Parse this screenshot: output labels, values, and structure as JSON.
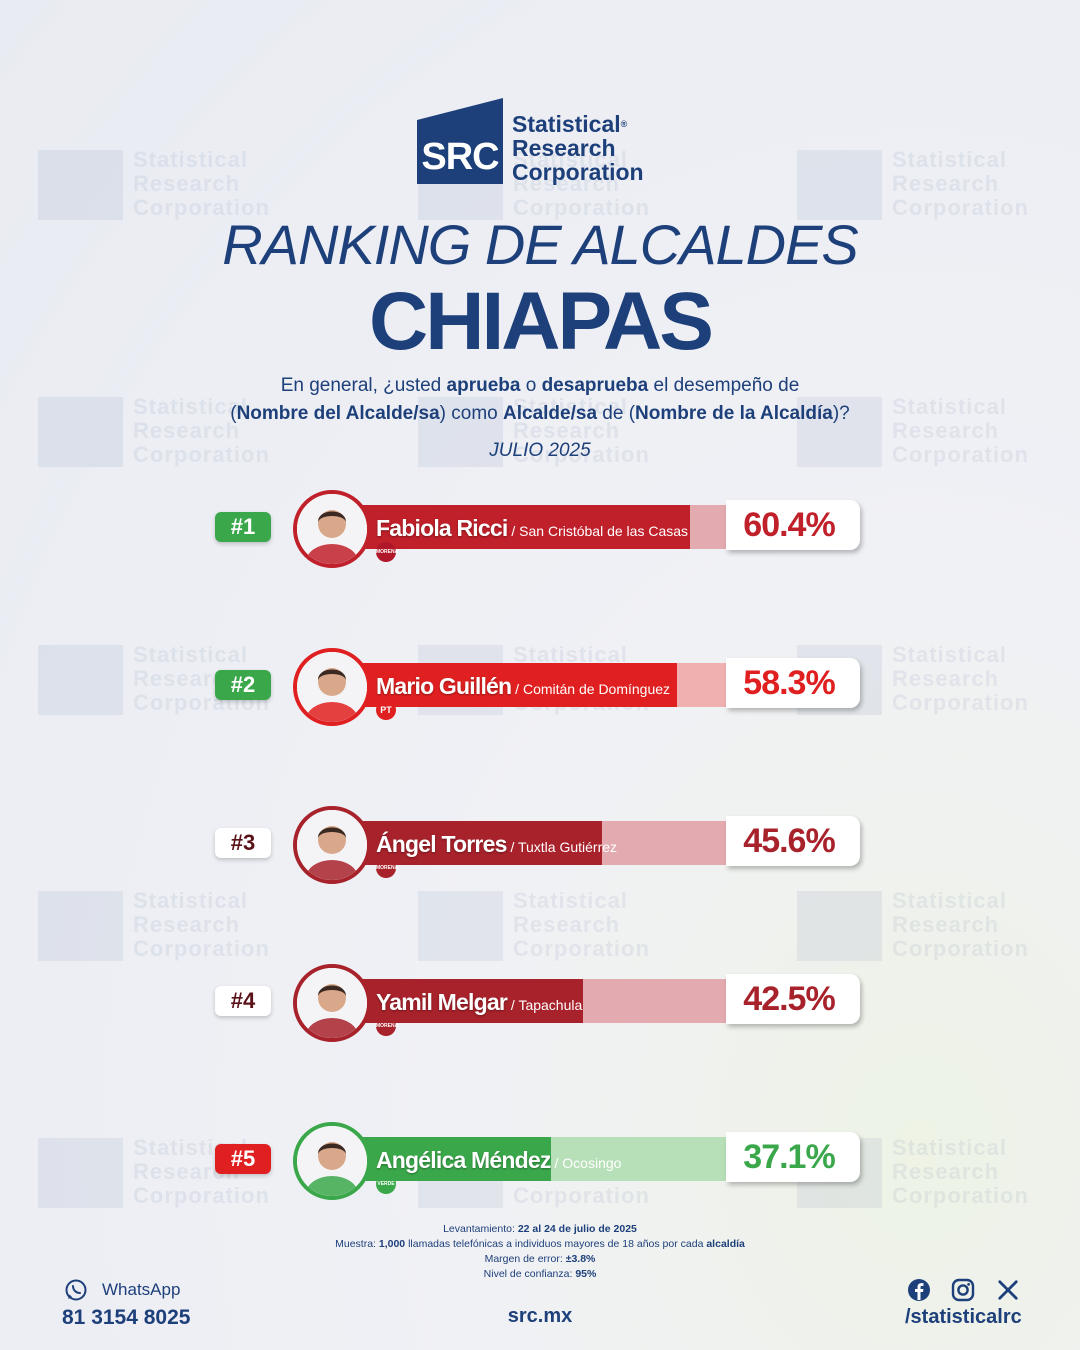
{
  "logo": {
    "abbr": "SRC",
    "line1": "Statistical",
    "line2": "Research",
    "line3": "Corporation",
    "reg": "®"
  },
  "title": "RANKING DE ALCALDES",
  "state": "CHIAPAS",
  "question": {
    "p1": "En general, ¿usted ",
    "b1": "aprueba",
    "p2": " o ",
    "b2": "desaprueba",
    "p3": " el desempeño de",
    "p4": "(",
    "b3": "Nombre del Alcalde/sa",
    "p5": ") como ",
    "b4": "Alcalde/sa",
    "p6": " de (",
    "b5": "Nombre de la Alcaldía",
    "p7": ")?"
  },
  "period": "JULIO 2025",
  "chart_data": {
    "type": "bar",
    "categories": [
      "Fabiola Ricci",
      "Mario Guillén",
      "Ángel Torres",
      "Yamil Melgar",
      "Angélica Méndez"
    ],
    "values": [
      60.4,
      58.3,
      45.6,
      42.5,
      37.1
    ],
    "ylim": [
      0,
      100
    ],
    "rows": [
      {
        "rank": "#1",
        "name": "Fabiola Ricci",
        "city": " / San Cristóbal de las Casas",
        "value": 60.4,
        "pct_label": "60.4%",
        "party": "MORENA",
        "rank_bg": "#3aa84a",
        "rank_fg": "#ffffff",
        "bar": "#c0202a",
        "track": "#e3aab0",
        "border": "#c0202a",
        "party_bg": "#b0182a",
        "pct_color": "#c0202a"
      },
      {
        "rank": "#2",
        "name": "Mario Guillén",
        "city": " / Comitán de Domínguez",
        "value": 58.3,
        "pct_label": "58.3%",
        "party": "PT",
        "rank_bg": "#3aa84a",
        "rank_fg": "#ffffff",
        "bar": "#e02020",
        "track": "#f0b0b0",
        "border": "#e02020",
        "party_bg": "#e02020",
        "pct_color": "#e02020"
      },
      {
        "rank": "#3",
        "name": "Ángel Torres",
        "city": " / Tuxtla Gutiérrez",
        "value": 45.6,
        "pct_label": "45.6%",
        "party": "MORENA",
        "rank_bg": "#ffffff",
        "rank_fg": "#5a1218",
        "bar": "#a8222b",
        "track": "#e3aab0",
        "border": "#a8222b",
        "party_bg": "#a8222b",
        "pct_color": "#a8222b"
      },
      {
        "rank": "#4",
        "name": "Yamil Melgar",
        "city": " / Tapachula",
        "value": 42.5,
        "pct_label": "42.5%",
        "party": "MORENA",
        "rank_bg": "#ffffff",
        "rank_fg": "#5a1218",
        "bar": "#a8222b",
        "track": "#e3aab0",
        "border": "#a8222b",
        "party_bg": "#a8222b",
        "pct_color": "#a8222b"
      },
      {
        "rank": "#5",
        "name": "Angélica Méndez",
        "city": " / Ocosingo",
        "value": 37.1,
        "pct_label": "37.1%",
        "party": "VERDE",
        "rank_bg": "#e02020",
        "rank_fg": "#ffffff",
        "bar": "#3aa84a",
        "track": "#b8e0b8",
        "border": "#3aa84a",
        "party_bg": "#3aa84a",
        "pct_color": "#3aa84a"
      }
    ]
  },
  "notes": {
    "l1_a": "Levantamiento: ",
    "l1_b": "22 al 24 de julio de 2025",
    "l2_a": "Muestra: ",
    "l2_b": "1,000",
    "l2_c": " llamadas telefónicas a individuos mayores de 18 años por cada ",
    "l2_d": "alcaldía",
    "l3_a": "Margen de error: ",
    "l3_b": "±3.8%",
    "l4_a": "Nivel de confianza: ",
    "l4_b": "95%"
  },
  "footer": {
    "whatsapp_label": "WhatsApp",
    "whatsapp_number": "81 3154 8025",
    "site": "src.mx",
    "social_handle": "/statisticalrc",
    "icons": [
      "whatsapp-icon",
      "facebook-icon",
      "instagram-icon",
      "x-icon"
    ]
  }
}
